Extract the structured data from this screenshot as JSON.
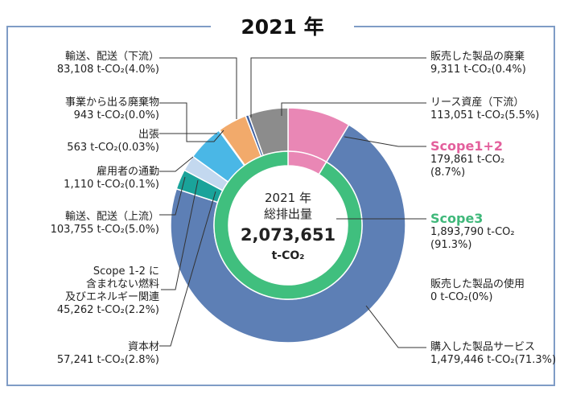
{
  "title": "2021 年",
  "center": {
    "line1": "2021 年",
    "line2": "総排出量",
    "total": "2,073,651",
    "unit": "t-CO₂"
  },
  "colors": {
    "scope3": "#5d7fb5",
    "scope12": "#e987b5",
    "inner_scope3": "#40bf7e",
    "scope12_label": "#e35f9c",
    "scope3_label": "#3fb87a",
    "border": "#7f9cc6"
  },
  "chart_data": {
    "type": "pie",
    "outer_ring": [
      {
        "name": "Scope1+2",
        "value": 179861,
        "percent": 8.7
      },
      {
        "name": "購入した製品サービス",
        "value": 1479446,
        "percent": 71.3
      },
      {
        "name": "資本材",
        "value": 57241,
        "percent": 2.8
      },
      {
        "name": "Scope 1-2 に含まれない燃料及びエネルギー関連",
        "value": 45262,
        "percent": 2.2
      },
      {
        "name": "輸送、配送（上流）",
        "value": 103755,
        "percent": 5.0
      },
      {
        "name": "雇用者の通勤",
        "value": 1110,
        "percent": 0.1
      },
      {
        "name": "出張",
        "value": 563,
        "percent": 0.03
      },
      {
        "name": "事業から出る廃棄物",
        "value": 943,
        "percent": 0.0
      },
      {
        "name": "輸送、配送（下流）",
        "value": 83108,
        "percent": 4.0
      },
      {
        "name": "販売した製品の廃棄",
        "value": 9311,
        "percent": 0.4
      },
      {
        "name": "リース資産（下流）",
        "value": 113051,
        "percent": 5.5
      },
      {
        "name": "販売した製品の使用",
        "value": 0,
        "percent": 0
      }
    ],
    "inner_ring": [
      {
        "name": "Scope1+2",
        "value": 179861,
        "percent": 8.7
      },
      {
        "name": "Scope3",
        "value": 1893790,
        "percent": 91.3
      }
    ],
    "slice_colors": [
      "#e987b5",
      "#5d7fb5",
      "#1aa39a",
      "#c3d8ef",
      "#4ab7e6",
      "#4ab7e6",
      "#ffffff",
      "#ffffff",
      "#f2aa6b",
      "#3d5fa0",
      "#8c8c8c",
      "#8c8c8c"
    ]
  },
  "labels": {
    "downstream_transport": {
      "name": "輸送、配送（下流）",
      "value": "83,108 t-CO₂(4.0%)"
    },
    "waste": {
      "name": "事業から出る廃棄物",
      "value": "943 t-CO₂(0.0%)"
    },
    "business_travel": {
      "name": "出張",
      "value": "563 t-CO₂(0.03%)"
    },
    "commuting": {
      "name": "雇用者の通勤",
      "value": "1,110 t-CO₂(0.1%)"
    },
    "upstream_transport": {
      "name": "輸送、配送（上流）",
      "value": "103,755 t-CO₂(5.0%)"
    },
    "fuel_energy": {
      "name1": "Scope 1-2 に",
      "name2": "含まれない燃料",
      "name3": "及びエネルギー関連",
      "value": "45,262 t-CO₂(2.2%)"
    },
    "capital_goods": {
      "name": "資本材",
      "value": "57,241 t-CO₂(2.8%)"
    },
    "end_of_life": {
      "name": "販売した製品の廃棄",
      "value": "9,311 t-CO₂(0.4%)"
    },
    "leased_assets": {
      "name": "リース資産（下流）",
      "value": "113,051 t-CO₂(5.5%)"
    },
    "scope12": {
      "name": "Scope1+2",
      "value1": "179,861 t-CO₂",
      "value2": "(8.7%)"
    },
    "scope3": {
      "name": "Scope3",
      "value1": "1,893,790 t-CO₂",
      "value2": "(91.3%)"
    },
    "use_of_products": {
      "name": "販売した製品の使用",
      "value": "0 t-CO₂(0%)"
    },
    "purchased_goods": {
      "name": "購入した製品サービス",
      "value": "1,479,446 t-CO₂(71.3%)"
    }
  }
}
